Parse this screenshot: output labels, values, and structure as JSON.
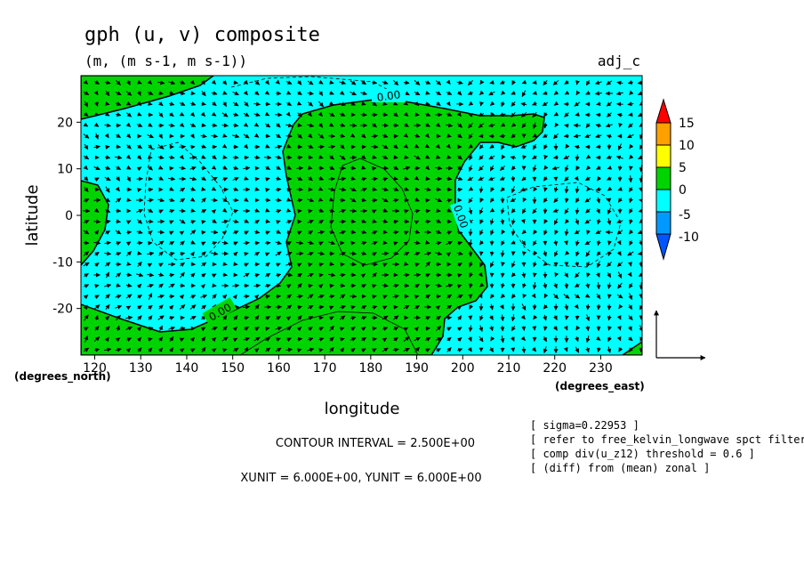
{
  "chart_data": {
    "type": "heatmap",
    "title": "gph (u, v) composite",
    "subtitle": "(m, (m s-1, m s-1))",
    "tag": "adj_c",
    "xlabel": "longitude",
    "ylabel": "latitude",
    "xunit_label": "(degrees_east)",
    "yunit_label": "(degrees_north)",
    "xlim": [
      117,
      239
    ],
    "ylim": [
      -30,
      30
    ],
    "xticks": [
      120,
      130,
      140,
      150,
      160,
      170,
      180,
      190,
      200,
      210,
      220,
      230
    ],
    "yticks": [
      -20,
      -10,
      0,
      10,
      20
    ],
    "fill_levels": [
      {
        "range": [
          10,
          15
        ],
        "color": "#ff9f00"
      },
      {
        "range": [
          5,
          10
        ],
        "color": "#ffff00"
      },
      {
        "range": [
          0,
          5
        ],
        "color": "#00d400"
      },
      {
        "range": [
          -5,
          0
        ],
        "color": "#00ffff"
      },
      {
        "range": [
          -10,
          -5
        ],
        "color": "#0099ff"
      }
    ],
    "colorbar": {
      "labels": [
        "15",
        "10",
        "5",
        "0",
        "-5",
        "-10"
      ],
      "colors": [
        "#ff0000",
        "#ff9f00",
        "#ffff00",
        "#00d400",
        "#00ffff",
        "#0099ff",
        "#0055ff"
      ]
    },
    "contour_labels": [
      "0.00",
      "0.00",
      "0.00"
    ],
    "contour_interval_text": "CONTOUR INTERVAL = 2.500E+00",
    "vector_unit_text": "XUNIT = 6.000E+00, YUNIT = 6.000E+00",
    "info_lines": [
      "[ sigma=0.22953 ]",
      "[ refer to free_kelvin_longwave spct filterin",
      "[ comp div(u_z12) threshold = 0.6 ]",
      "[ (diff) from (mean) zonal ]"
    ]
  }
}
